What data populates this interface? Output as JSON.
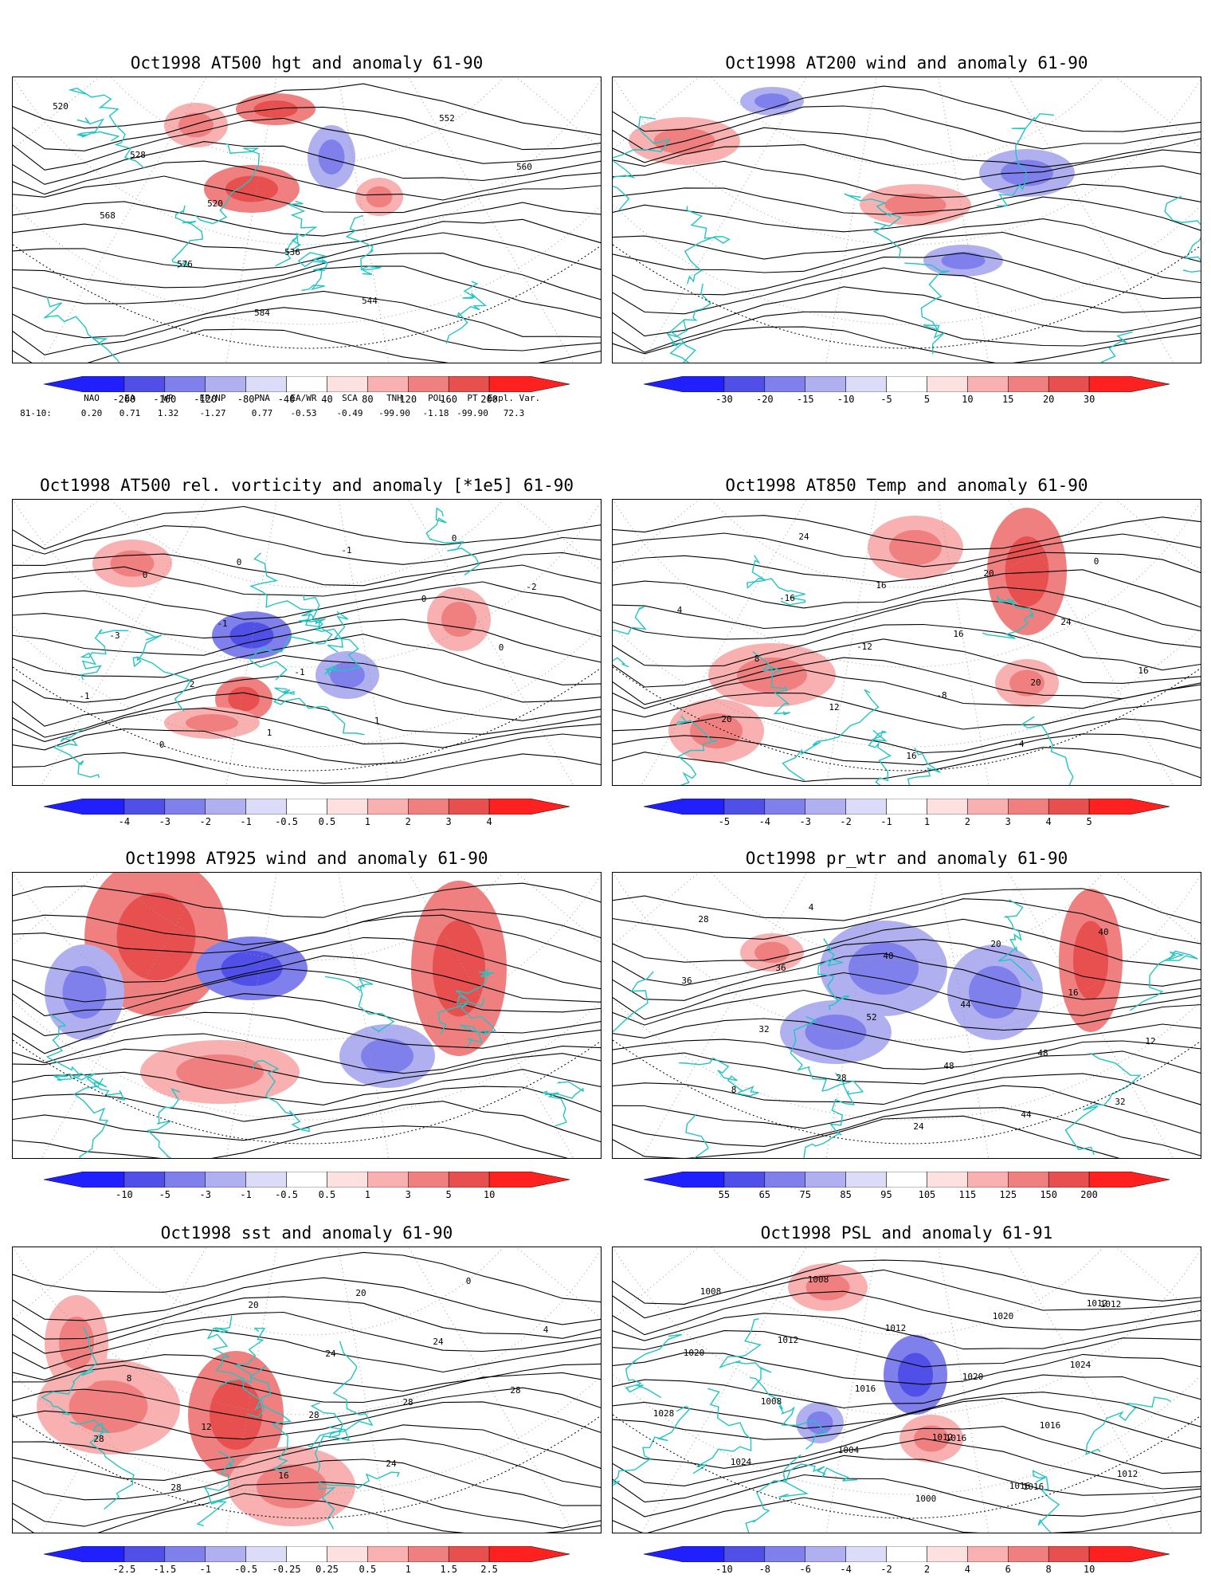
{
  "panels": [
    {
      "title": "Oct1998 AT500 hgt and anomaly 61-90",
      "colorbar_ticks": [
        "-200",
        "-160",
        "-120",
        "-80",
        "-40",
        "40",
        "80",
        "120",
        "160",
        "200"
      ],
      "contour_labels": [
        "520",
        "528",
        "520",
        "536",
        "544",
        "552",
        "560",
        "568",
        "576",
        "584"
      ]
    },
    {
      "title": "Oct1998 AT200 wind and anomaly 61-90",
      "colorbar_ticks": [
        "-30",
        "-20",
        "-15",
        "-10",
        "-5",
        "5",
        "10",
        "15",
        "20",
        "30"
      ],
      "contour_labels": []
    },
    {
      "title": "Oct1998 AT500 rel. vorticity and anomaly [*1e5] 61-90",
      "colorbar_ticks": [
        "-4",
        "-3",
        "-2",
        "-1",
        "-0.5",
        "0.5",
        "1",
        "2",
        "3",
        "4"
      ],
      "contour_labels": [
        "0",
        "-1",
        "-1",
        "1",
        "0",
        "-2",
        "-3",
        "2",
        "1",
        "-1",
        "0",
        "0",
        "-1",
        "0",
        "0"
      ]
    },
    {
      "title": "Oct1998 AT850 Temp and anomaly 61-90",
      "colorbar_ticks": [
        "-5",
        "-4",
        "-3",
        "-2",
        "-1",
        "1",
        "2",
        "3",
        "4",
        "5"
      ],
      "contour_labels": [
        "-16",
        "-12",
        "-8",
        "-4",
        "0",
        "4",
        "8",
        "12",
        "16",
        "20",
        "24",
        "16",
        "20",
        "24",
        "16",
        "16",
        "20"
      ]
    },
    {
      "title": "Oct1998 AT925 wind and anomaly 61-90",
      "colorbar_ticks": [
        "-10",
        "-5",
        "-3",
        "-1",
        "-0.5",
        "0.5",
        "1",
        "3",
        "5",
        "10"
      ],
      "contour_labels": []
    },
    {
      "title": "Oct1998 pr_wtr and anomaly 61-90",
      "colorbar_ticks": [
        "55",
        "65",
        "75",
        "85",
        "95",
        "105",
        "115",
        "125",
        "150",
        "200"
      ],
      "contour_labels": [
        "52",
        "48",
        "44",
        "40",
        "36",
        "32",
        "28",
        "24",
        "20",
        "16",
        "12",
        "8",
        "4",
        "40",
        "44",
        "48",
        "32",
        "28",
        "36"
      ]
    },
    {
      "title": "Oct1998 sst and anomaly 61-90",
      "colorbar_ticks": [
        "-2.5",
        "-1.5",
        "-1",
        "-0.5",
        "-0.25",
        "0.25",
        "0.5",
        "1",
        "1.5",
        "2.5"
      ],
      "contour_labels": [
        "28",
        "24",
        "0",
        "4",
        "8",
        "12",
        "16",
        "20",
        "24",
        "28",
        "28",
        "28",
        "20",
        "24",
        "28"
      ]
    },
    {
      "title": "Oct1998 PSL and anomaly 61-91",
      "colorbar_ticks": [
        "-10",
        "-8",
        "-6",
        "-4",
        "-2",
        "2",
        "4",
        "6",
        "8",
        "10"
      ],
      "contour_labels": [
        "1016",
        "1016",
        "1012",
        "1020",
        "1008",
        "1004",
        "1000",
        "1020",
        "1024",
        "1028",
        "1024",
        "1008",
        "1012",
        "1020",
        "1016",
        "1012",
        "1008",
        "1012",
        "1016",
        "1012",
        "1016",
        "1012"
      ]
    }
  ],
  "teleconnection": {
    "headers": [
      "NAO",
      "EA",
      "WP",
      "EP/NP",
      "PNA",
      "EA/WR",
      "SCA",
      "TNH",
      "POL",
      "PT",
      "Expl. Var."
    ],
    "row_label": "81-10:",
    "values": [
      "0.20",
      "0.71",
      "1.32",
      "-1.27",
      "0.77",
      "-0.53",
      "-0.49",
      "-99.90",
      "-1.18",
      "-99.90",
      "72.3"
    ]
  },
  "colors": {
    "coast": "#22c4c4",
    "contour": "#000000",
    "anom_pos": [
      "#fde0e0",
      "#f8b0b0",
      "#f08080",
      "#e85050",
      "#ff2020"
    ],
    "anom_neg": [
      "#dcdcf8",
      "#b0b0f0",
      "#8080ec",
      "#5050e8",
      "#2020ff"
    ]
  }
}
